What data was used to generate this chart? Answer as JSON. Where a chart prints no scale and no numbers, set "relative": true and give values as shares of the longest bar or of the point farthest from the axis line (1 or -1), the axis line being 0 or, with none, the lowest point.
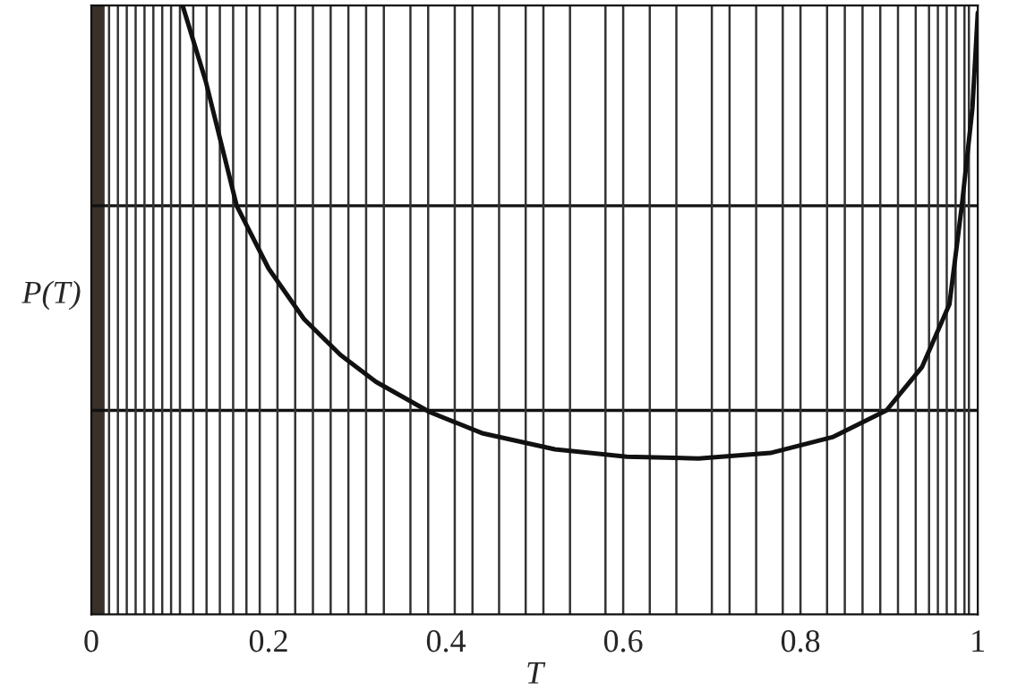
{
  "chart_data": {
    "type": "line",
    "relative": true,
    "xlabel": "T",
    "ylabel": "P(T)",
    "xlim": [
      0,
      1
    ],
    "xticks": [
      0,
      {
        "value": 0.2,
        "label": "0.2"
      },
      {
        "value": 0.4,
        "label": "0.4"
      },
      {
        "value": 0.6,
        "label": "0.6"
      },
      {
        "value": 0.8,
        "label": "0.8"
      },
      1
    ],
    "x": [
      0.103,
      0.129,
      0.164,
      0.2,
      0.24,
      0.281,
      0.321,
      0.382,
      0.442,
      0.523,
      0.604,
      0.685,
      0.766,
      0.836,
      0.897,
      0.937,
      0.968,
      0.982,
      0.994,
      1.0
    ],
    "series": [
      {
        "color": "#111111",
        "values": [
          1.0,
          0.876,
          0.671,
          0.568,
          0.485,
          0.426,
          0.382,
          0.332,
          0.297,
          0.271,
          0.259,
          0.256,
          0.265,
          0.291,
          0.335,
          0.406,
          0.509,
          0.671,
          0.832,
          0.988
        ]
      }
    ],
    "marker": "none",
    "line_style": "solid",
    "grid": false,
    "legend": false,
    "bands": [
      {
        "axis": "x",
        "from": 0,
        "to": 0.015,
        "color": "#3a302a"
      }
    ],
    "ref_lines": [
      {
        "axis": "y",
        "value": 0.335,
        "color": "#111111"
      },
      {
        "axis": "y",
        "value": 0.671,
        "color": "#111111"
      },
      {
        "axis": "x",
        "value": 0.02,
        "color": "#333333"
      },
      {
        "axis": "x",
        "value": 0.03,
        "color": "#333333"
      },
      {
        "axis": "x",
        "value": 0.04,
        "color": "#333333"
      },
      {
        "axis": "x",
        "value": 0.05,
        "color": "#333333"
      },
      {
        "axis": "x",
        "value": 0.06,
        "color": "#333333"
      },
      {
        "axis": "x",
        "value": 0.07,
        "color": "#333333"
      },
      {
        "axis": "x",
        "value": 0.08,
        "color": "#333333"
      },
      {
        "axis": "x",
        "value": 0.09,
        "color": "#333333"
      },
      {
        "axis": "x",
        "value": 0.1,
        "color": "#333333"
      },
      {
        "axis": "x",
        "value": 0.115,
        "color": "#333333"
      },
      {
        "axis": "x",
        "value": 0.13,
        "color": "#333333"
      },
      {
        "axis": "x",
        "value": 0.145,
        "color": "#333333"
      },
      {
        "axis": "x",
        "value": 0.16,
        "color": "#333333"
      },
      {
        "axis": "x",
        "value": 0.175,
        "color": "#333333"
      },
      {
        "axis": "x",
        "value": 0.19,
        "color": "#333333"
      },
      {
        "axis": "x",
        "value": 0.21,
        "color": "#333333"
      },
      {
        "axis": "x",
        "value": 0.23,
        "color": "#333333"
      },
      {
        "axis": "x",
        "value": 0.25,
        "color": "#333333"
      },
      {
        "axis": "x",
        "value": 0.27,
        "color": "#333333"
      },
      {
        "axis": "x",
        "value": 0.29,
        "color": "#333333"
      },
      {
        "axis": "x",
        "value": 0.31,
        "color": "#333333"
      },
      {
        "axis": "x",
        "value": 0.33,
        "color": "#333333"
      },
      {
        "axis": "x",
        "value": 0.36,
        "color": "#333333"
      },
      {
        "axis": "x",
        "value": 0.38,
        "color": "#333333"
      },
      {
        "axis": "x",
        "value": 0.41,
        "color": "#333333"
      },
      {
        "axis": "x",
        "value": 0.43,
        "color": "#333333"
      },
      {
        "axis": "x",
        "value": 0.46,
        "color": "#333333"
      },
      {
        "axis": "x",
        "value": 0.49,
        "color": "#333333"
      },
      {
        "axis": "x",
        "value": 0.51,
        "color": "#333333"
      },
      {
        "axis": "x",
        "value": 0.54,
        "color": "#333333"
      },
      {
        "axis": "x",
        "value": 0.58,
        "color": "#333333"
      },
      {
        "axis": "x",
        "value": 0.6,
        "color": "#333333"
      },
      {
        "axis": "x",
        "value": 0.63,
        "color": "#333333"
      },
      {
        "axis": "x",
        "value": 0.66,
        "color": "#333333"
      },
      {
        "axis": "x",
        "value": 0.7,
        "color": "#333333"
      },
      {
        "axis": "x",
        "value": 0.72,
        "color": "#333333"
      },
      {
        "axis": "x",
        "value": 0.75,
        "color": "#333333"
      },
      {
        "axis": "x",
        "value": 0.78,
        "color": "#333333"
      },
      {
        "axis": "x",
        "value": 0.8,
        "color": "#333333"
      },
      {
        "axis": "x",
        "value": 0.83,
        "color": "#333333"
      },
      {
        "axis": "x",
        "value": 0.85,
        "color": "#333333"
      },
      {
        "axis": "x",
        "value": 0.87,
        "color": "#333333"
      },
      {
        "axis": "x",
        "value": 0.89,
        "color": "#333333"
      },
      {
        "axis": "x",
        "value": 0.91,
        "color": "#333333"
      },
      {
        "axis": "x",
        "value": 0.93,
        "color": "#333333"
      },
      {
        "axis": "x",
        "value": 0.945,
        "color": "#333333"
      },
      {
        "axis": "x",
        "value": 0.955,
        "color": "#333333"
      },
      {
        "axis": "x",
        "value": 0.965,
        "color": "#333333"
      },
      {
        "axis": "x",
        "value": 0.975,
        "color": "#333333"
      },
      {
        "axis": "x",
        "value": 0.985,
        "color": "#333333"
      },
      {
        "axis": "x",
        "value": 0.99,
        "color": "#333333"
      }
    ]
  }
}
